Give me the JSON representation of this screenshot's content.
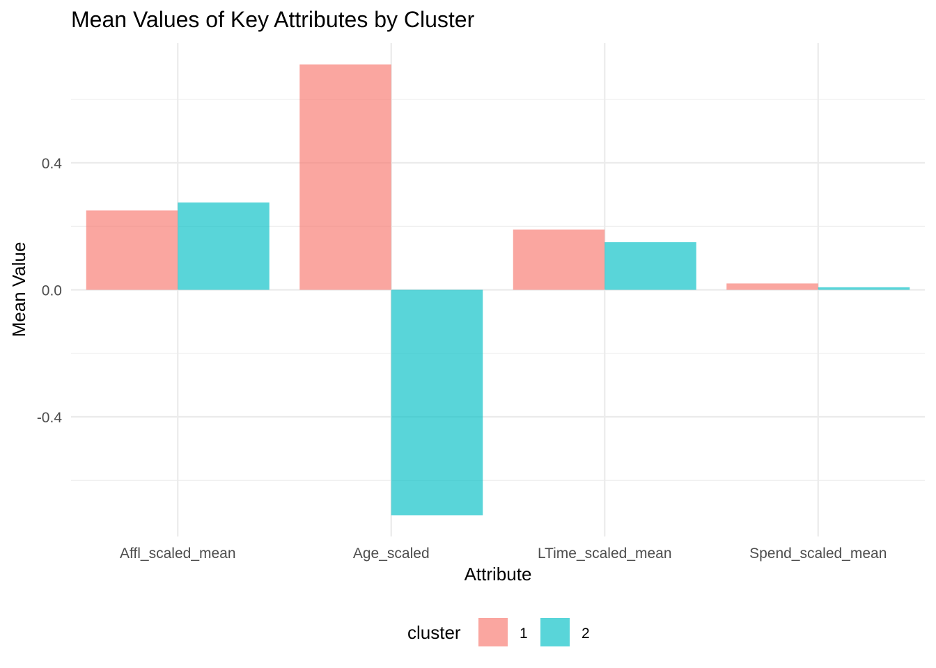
{
  "chart_data": {
    "type": "bar",
    "title": "Mean Values of Key Attributes by Cluster",
    "xlabel": "Attribute",
    "ylabel": "Mean Value",
    "categories": [
      "Affl_scaled_mean",
      "Age_scaled",
      "LTime_scaled_mean",
      "Spend_scaled_mean"
    ],
    "series": [
      {
        "name": "1",
        "color": "#F8766D",
        "values": [
          0.25,
          0.71,
          0.19,
          0.02
        ]
      },
      {
        "name": "2",
        "color": "#00BFC4",
        "values": [
          0.275,
          -0.71,
          0.15,
          0.008
        ]
      }
    ],
    "ylim": [
      -0.77,
      0.77
    ],
    "yticks": [
      -0.4,
      0.0,
      0.4
    ],
    "ytick_labels": [
      "-0.4",
      "0.0",
      "0.4"
    ],
    "yminor": [
      -0.6,
      -0.2,
      0.2,
      0.6
    ],
    "grid": true,
    "legend": {
      "title": "cluster",
      "position": "bottom",
      "entries": [
        "1",
        "2"
      ]
    },
    "bar_opacity": 0.65
  }
}
